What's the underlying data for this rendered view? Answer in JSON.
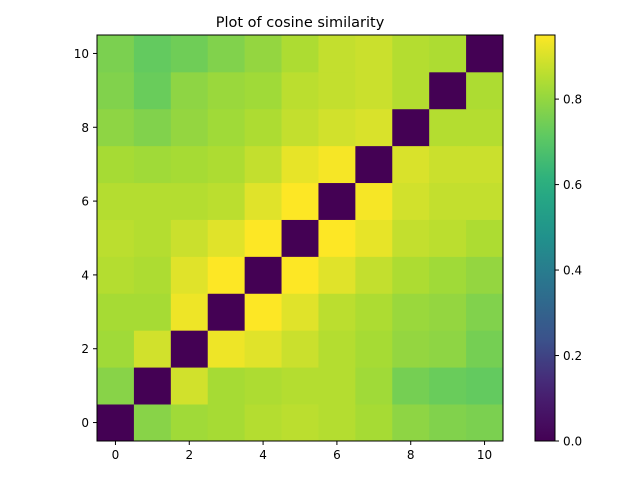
{
  "chart_data": {
    "type": "heatmap",
    "title": "Plot of cosine similarity",
    "xlabel": "",
    "ylabel": "",
    "x": [
      0,
      1,
      2,
      3,
      4,
      5,
      6,
      7,
      8,
      9,
      10
    ],
    "y": [
      0,
      1,
      2,
      3,
      4,
      5,
      6,
      7,
      8,
      9,
      10
    ],
    "x_ticks": [
      0,
      2,
      4,
      6,
      8,
      10
    ],
    "y_ticks": [
      0,
      2,
      4,
      6,
      8,
      10
    ],
    "xlim": [
      -0.5,
      10.5
    ],
    "ylim": [
      -0.5,
      10.5
    ],
    "origin": "lower",
    "colormap": "viridis",
    "vmin": 0.0,
    "vmax": 0.95,
    "colorbar_ticks": [
      0.0,
      0.2,
      0.4,
      0.6,
      0.8
    ],
    "colorbar_tick_labels": [
      "0.0",
      "0.2",
      "0.4",
      "0.6",
      "0.8"
    ],
    "matrix": [
      [
        0.0,
        0.78,
        0.82,
        0.83,
        0.85,
        0.86,
        0.85,
        0.83,
        0.79,
        0.77,
        0.76
      ],
      [
        0.78,
        0.0,
        0.89,
        0.83,
        0.84,
        0.85,
        0.85,
        0.82,
        0.75,
        0.73,
        0.72
      ],
      [
        0.82,
        0.89,
        0.0,
        0.93,
        0.91,
        0.88,
        0.85,
        0.83,
        0.8,
        0.79,
        0.75
      ],
      [
        0.83,
        0.83,
        0.93,
        0.0,
        0.95,
        0.91,
        0.86,
        0.84,
        0.81,
        0.8,
        0.77
      ],
      [
        0.85,
        0.84,
        0.91,
        0.95,
        0.0,
        0.95,
        0.91,
        0.87,
        0.84,
        0.82,
        0.8
      ],
      [
        0.86,
        0.85,
        0.88,
        0.91,
        0.95,
        0.0,
        0.95,
        0.92,
        0.87,
        0.86,
        0.84
      ],
      [
        0.85,
        0.85,
        0.85,
        0.86,
        0.91,
        0.95,
        0.0,
        0.94,
        0.89,
        0.87,
        0.87
      ],
      [
        0.83,
        0.82,
        0.83,
        0.84,
        0.87,
        0.92,
        0.94,
        0.0,
        0.9,
        0.88,
        0.88
      ],
      [
        0.79,
        0.77,
        0.8,
        0.82,
        0.84,
        0.87,
        0.89,
        0.9,
        0.0,
        0.85,
        0.85
      ],
      [
        0.77,
        0.73,
        0.79,
        0.81,
        0.82,
        0.86,
        0.87,
        0.88,
        0.85,
        0.0,
        0.84
      ],
      [
        0.76,
        0.72,
        0.74,
        0.77,
        0.8,
        0.84,
        0.87,
        0.88,
        0.85,
        0.84,
        0.0
      ]
    ],
    "grid": false
  }
}
